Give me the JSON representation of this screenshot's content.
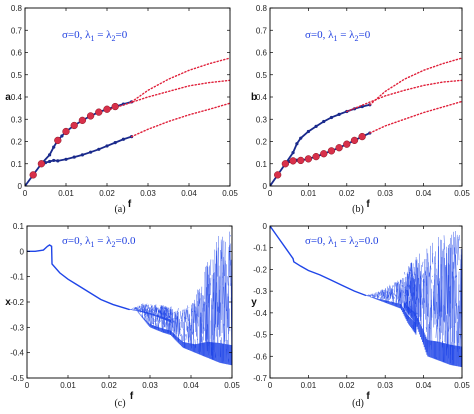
{
  "chart_data": [
    {
      "type": "line",
      "panel": "a",
      "caption": "(a)",
      "xlabel": "f",
      "ylabel": "a",
      "xlim": [
        0,
        0.05
      ],
      "ylim": [
        0,
        0.8
      ],
      "xticks": [
        "0",
        "0.01",
        "0.02",
        "0.03",
        "0.04",
        "0.05"
      ],
      "yticks": [
        "0",
        "0.1",
        "0.2",
        "0.3",
        "0.4",
        "0.5",
        "0.6",
        "0.7",
        "0.8"
      ],
      "annotation": {
        "sigma": "σ=0, λ",
        "s1": "1",
        "eq": " = λ",
        "s2": "2",
        "tail": "=0"
      },
      "colors": {
        "stable": "#1a2a8c",
        "unstable": "#e0203a",
        "markers": "#d8304a"
      },
      "series": [
        {
          "style": "stable-dots",
          "x": [
            0,
            0.002,
            0.004,
            0.006,
            0.007,
            0.008,
            0.009,
            0.01,
            0.012,
            0.014,
            0.016,
            0.018,
            0.02,
            0.022,
            0.024,
            0.026
          ],
          "y": [
            0,
            0.05,
            0.1,
            0.14,
            0.175,
            0.205,
            0.225,
            0.245,
            0.272,
            0.295,
            0.315,
            0.332,
            0.345,
            0.357,
            0.368,
            0.378
          ]
        },
        {
          "style": "stable-dots",
          "x": [
            0.005,
            0.006,
            0.007,
            0.008,
            0.01,
            0.012,
            0.014,
            0.016,
            0.018,
            0.02,
            0.022,
            0.024,
            0.026
          ],
          "y": [
            0.105,
            0.11,
            0.115,
            0.113,
            0.12,
            0.13,
            0.14,
            0.152,
            0.165,
            0.18,
            0.195,
            0.21,
            0.222
          ]
        },
        {
          "style": "dotted",
          "x": [
            0.026,
            0.03,
            0.035,
            0.04,
            0.045,
            0.05
          ],
          "y": [
            0.378,
            0.43,
            0.48,
            0.52,
            0.55,
            0.575
          ]
        },
        {
          "style": "dotted",
          "x": [
            0.02,
            0.025,
            0.03,
            0.035,
            0.04,
            0.045,
            0.05
          ],
          "y": [
            0.34,
            0.37,
            0.4,
            0.425,
            0.45,
            0.465,
            0.475
          ]
        },
        {
          "style": "dotted",
          "x": [
            0.026,
            0.03,
            0.035,
            0.04,
            0.045,
            0.05
          ],
          "y": [
            0.222,
            0.255,
            0.29,
            0.32,
            0.345,
            0.372
          ]
        },
        {
          "style": "markers",
          "x": [
            0.002,
            0.004,
            0.008,
            0.01,
            0.012,
            0.014,
            0.016,
            0.018,
            0.02,
            0.022
          ],
          "y": [
            0.05,
            0.1,
            0.205,
            0.245,
            0.272,
            0.295,
            0.315,
            0.332,
            0.345,
            0.357
          ]
        }
      ]
    },
    {
      "type": "line",
      "panel": "b",
      "caption": "(b)",
      "xlabel": "f",
      "ylabel": "b",
      "xlim": [
        0,
        0.05
      ],
      "ylim": [
        0,
        0.8
      ],
      "xticks": [
        "0",
        "0.01",
        "0.02",
        "0.03",
        "0.04",
        "0.05"
      ],
      "yticks": [
        "0",
        "0.1",
        "0.2",
        "0.3",
        "0.4",
        "0.5",
        "0.6",
        "0.7",
        "0.8"
      ],
      "annotation": {
        "sigma": "σ=0, λ",
        "s1": "1",
        "eq": " = λ",
        "s2": "2",
        "tail": "=0"
      },
      "colors": {
        "stable": "#1a2a8c",
        "unstable": "#e0203a",
        "markers": "#d8304a"
      },
      "series": [
        {
          "style": "stable-dots",
          "x": [
            0,
            0.002,
            0.004,
            0.006,
            0.007,
            0.008,
            0.01,
            0.012,
            0.014,
            0.016,
            0.018,
            0.02,
            0.022,
            0.024,
            0.026
          ],
          "y": [
            0,
            0.05,
            0.1,
            0.15,
            0.19,
            0.215,
            0.245,
            0.268,
            0.29,
            0.308,
            0.322,
            0.335,
            0.347,
            0.357,
            0.365
          ]
        },
        {
          "style": "stable-dots",
          "x": [
            0.005,
            0.006,
            0.007,
            0.008,
            0.01,
            0.012,
            0.014,
            0.016,
            0.018,
            0.02,
            0.022,
            0.024,
            0.026
          ],
          "y": [
            0.11,
            0.113,
            0.116,
            0.115,
            0.122,
            0.132,
            0.145,
            0.158,
            0.172,
            0.188,
            0.205,
            0.222,
            0.238
          ]
        },
        {
          "style": "dotted",
          "x": [
            0.026,
            0.03,
            0.035,
            0.04,
            0.045,
            0.05
          ],
          "y": [
            0.365,
            0.425,
            0.48,
            0.52,
            0.55,
            0.575
          ]
        },
        {
          "style": "dotted",
          "x": [
            0.02,
            0.025,
            0.03,
            0.035,
            0.04,
            0.045,
            0.05
          ],
          "y": [
            0.335,
            0.37,
            0.405,
            0.43,
            0.452,
            0.467,
            0.475
          ]
        },
        {
          "style": "dotted",
          "x": [
            0.026,
            0.03,
            0.035,
            0.04,
            0.045,
            0.05
          ],
          "y": [
            0.238,
            0.27,
            0.3,
            0.33,
            0.355,
            0.38
          ]
        },
        {
          "style": "markers",
          "x": [
            0.002,
            0.004,
            0.006,
            0.008,
            0.01,
            0.012,
            0.014,
            0.016,
            0.018,
            0.02,
            0.022,
            0.024
          ],
          "y": [
            0.05,
            0.1,
            0.113,
            0.115,
            0.122,
            0.132,
            0.145,
            0.158,
            0.172,
            0.188,
            0.205,
            0.222
          ]
        }
      ]
    },
    {
      "type": "scatter",
      "panel": "c",
      "caption": "(c)",
      "xlabel": "f",
      "ylabel": "x",
      "xlim": [
        0,
        0.05
      ],
      "ylim": [
        -0.5,
        0.1
      ],
      "xticks": [
        "0",
        "0.01",
        "0.02",
        "0.03",
        "0.04",
        "0.05"
      ],
      "yticks": [
        "0.1",
        "0",
        "-0.1",
        "-0.2",
        "-0.3",
        "-0.4",
        "-0.5"
      ],
      "annotation": {
        "sigma": "σ=0, λ",
        "s1": "1",
        "eq": " = λ",
        "s2": "2",
        "tail": "=0.0"
      },
      "colors": {
        "series": "#1f45e8"
      },
      "curve": {
        "x": [
          0,
          0.002,
          0.004,
          0.005,
          0.0055,
          0.006,
          0.0061,
          0.008,
          0.01,
          0.012,
          0.015,
          0.018,
          0.021,
          0.024,
          0.025
        ],
        "y": [
          0.0,
          0.0,
          0.005,
          0.02,
          0.025,
          0.02,
          -0.05,
          -0.085,
          -0.11,
          -0.13,
          -0.16,
          -0.19,
          -0.21,
          -0.225,
          -0.23
        ]
      },
      "bands": [
        {
          "x": [
            0.025,
            0.028,
            0.032,
            0.035
          ],
          "ymin": [
            -0.23,
            -0.24,
            -0.26,
            -0.28
          ],
          "ymax": [
            -0.23,
            -0.205,
            -0.21,
            -0.215
          ]
        },
        {
          "x": [
            0.027,
            0.03,
            0.033,
            0.035
          ],
          "ymin": [
            -0.24,
            -0.3,
            -0.32,
            -0.33
          ],
          "ymax": [
            -0.23,
            -0.22,
            -0.215,
            -0.215
          ]
        },
        {
          "x": [
            0.035,
            0.038,
            0.041,
            0.044,
            0.047,
            0.05
          ],
          "ymin": [
            -0.33,
            -0.38,
            -0.4,
            -0.42,
            -0.44,
            -0.45
          ],
          "ymax": [
            -0.215,
            -0.23,
            -0.18,
            0.0,
            0.08,
            0.08
          ]
        }
      ]
    },
    {
      "type": "scatter",
      "panel": "d",
      "caption": "(d)",
      "xlabel": "f",
      "ylabel": "y",
      "xlim": [
        0,
        0.05
      ],
      "ylim": [
        -0.7,
        0
      ],
      "xticks": [
        "0",
        "0.01",
        "0.02",
        "0.03",
        "0.04",
        "0.05"
      ],
      "yticks": [
        "0",
        "-0.1",
        "-0.2",
        "-0.3",
        "-0.4",
        "-0.5",
        "-0.6",
        "-0.7"
      ],
      "annotation": {
        "sigma": "σ=0, λ",
        "s1": "1",
        "eq": " = λ",
        "s2": "2",
        "tail": "=0.0"
      },
      "colors": {
        "series": "#1f45e8"
      },
      "curve": {
        "x": [
          0,
          0.002,
          0.004,
          0.006,
          0.0062,
          0.008,
          0.01,
          0.013,
          0.016,
          0.019,
          0.022,
          0.025
        ],
        "y": [
          0,
          -0.05,
          -0.1,
          -0.15,
          -0.165,
          -0.185,
          -0.205,
          -0.225,
          -0.25,
          -0.275,
          -0.3,
          -0.32
        ]
      },
      "bands": [
        {
          "x": [
            0.025,
            0.028,
            0.031,
            0.034
          ],
          "ymin": [
            -0.32,
            -0.34,
            -0.36,
            -0.38
          ],
          "ymax": [
            -0.32,
            -0.3,
            -0.27,
            -0.24
          ]
        },
        {
          "x": [
            0.034,
            0.036,
            0.038
          ],
          "ymin": [
            -0.38,
            -0.45,
            -0.5
          ],
          "ymax": [
            -0.24,
            -0.2,
            -0.14
          ]
        },
        {
          "x": [
            0.035,
            0.038,
            0.041,
            0.044,
            0.047,
            0.05
          ],
          "ymin": [
            -0.38,
            -0.45,
            -0.6,
            -0.62,
            -0.64,
            -0.65
          ],
          "ymax": [
            -0.2,
            -0.14,
            -0.1,
            -0.04,
            -0.02,
            -0.02
          ]
        }
      ]
    }
  ]
}
